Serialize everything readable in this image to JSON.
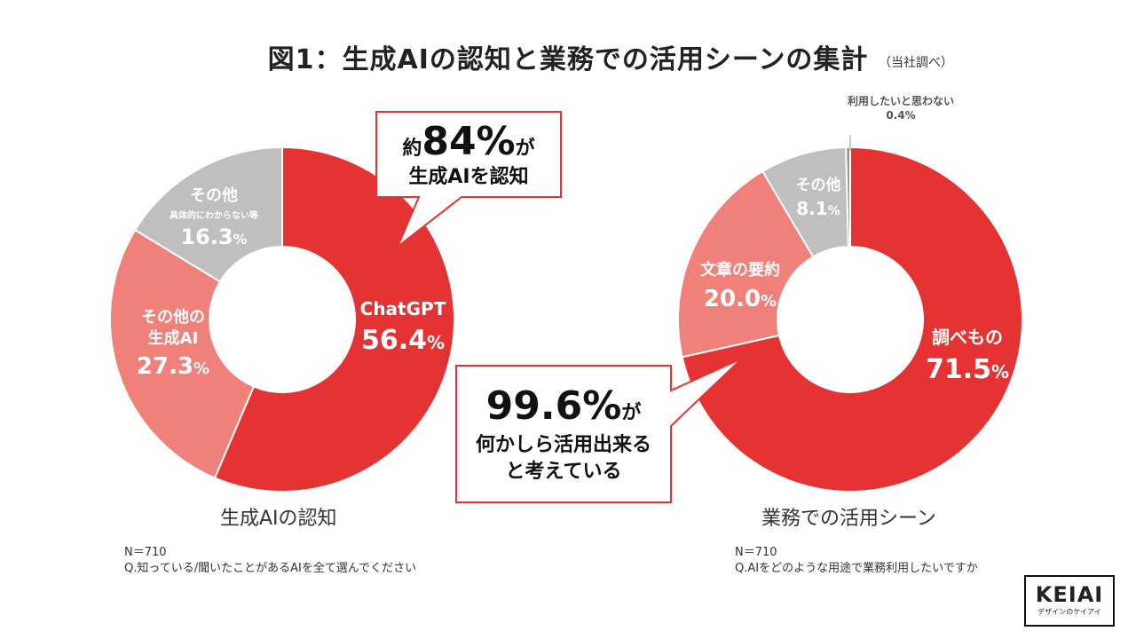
{
  "title": "図1：生成AIの認知と業務での活用シーンの集計",
  "note": "（当社調べ）",
  "chart_data": [
    {
      "type": "pie",
      "title": "生成AIの認知",
      "slices": [
        {
          "label": "ChatGPT",
          "value": 56.4,
          "color": "#e53232"
        },
        {
          "label": "その他の生成AI",
          "value": 27.3,
          "color": "#f0807a"
        },
        {
          "label": "その他",
          "sublabel": "具体的にわからない等",
          "value": 16.3,
          "color": "#bfbfbf"
        }
      ]
    },
    {
      "type": "pie",
      "title": "業務での活用シーン",
      "slices": [
        {
          "label": "調べもの",
          "value": 71.5,
          "color": "#e53232"
        },
        {
          "label": "文章の要約",
          "value": 20.0,
          "color": "#f0807a"
        },
        {
          "label": "その他",
          "value": 8.1,
          "color": "#bfbfbf"
        },
        {
          "label": "利用したいと思わない",
          "value": 0.4,
          "color": "#999999"
        }
      ]
    }
  ],
  "labels": {
    "left": {
      "chatgpt_name": "ChatGPT",
      "chatgpt_value": "56.4",
      "pct": "%",
      "other_ai_line1": "その他の",
      "other_ai_line2": "生成AI",
      "other_ai_value": "27.3",
      "other_line1": "その他",
      "other_sub": "具体的にわからない等",
      "other_value": "16.3"
    },
    "right": {
      "search_name": "調べもの",
      "search_value": "71.5",
      "summary_name": "文章の要約",
      "summary_value": "20.0",
      "other_name": "その他",
      "other_value": "8.1",
      "nouse_name": "利用したいと思わない",
      "nouse_value": "0.4%"
    }
  },
  "callout1": {
    "prefix": "約",
    "value": "84%",
    "suffix": "が",
    "line2": "生成AIを認知"
  },
  "callout2": {
    "value": "99.6%",
    "suffix": "が",
    "line2": "何かしら活用出来る",
    "line3": "と考えている"
  },
  "footer_left": {
    "n": "N＝710",
    "q": "Q.知っている/聞いたことがあるAIを全て選んでください"
  },
  "footer_right": {
    "n": "N＝710",
    "q": "Q.AIをどのような用途で業務利用したいですか"
  },
  "logo": {
    "brand": "KEIAI",
    "tag": "デザインのケイアイ"
  }
}
